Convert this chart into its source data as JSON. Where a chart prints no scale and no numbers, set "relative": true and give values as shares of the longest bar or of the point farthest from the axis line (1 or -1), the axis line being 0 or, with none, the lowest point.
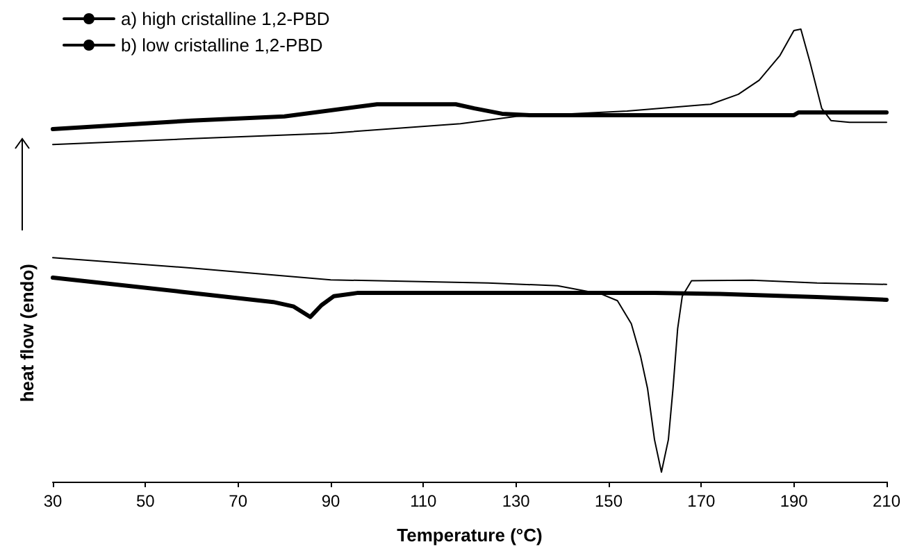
{
  "chart_data": {
    "type": "line",
    "relative": true,
    "xlabel": "Temperature (°C)",
    "ylabel": "heat flow (endo)",
    "xlim": [
      30,
      210
    ],
    "xticks": [
      30,
      50,
      70,
      90,
      110,
      130,
      150,
      170,
      190,
      210
    ],
    "grid": false,
    "legend": "top left",
    "marker": "none",
    "line_style": "solid",
    "series": [
      {
        "name": "a) high cristalline 1,2-PBD",
        "color": "#000000",
        "x": [
          30,
          60,
          90,
          118,
          130,
          154,
          172,
          178,
          182.5,
          187,
          190,
          191.5,
          193.5,
          196,
          198,
          202,
          210
        ],
        "values": [
          0.745,
          0.758,
          0.77,
          0.791,
          0.807,
          0.819,
          0.834,
          0.856,
          0.887,
          0.942,
          0.997,
          1.0,
          0.926,
          0.825,
          0.798,
          0.794,
          0.794
        ]
      },
      {
        "name": "b) low cristalline 1,2-PBD",
        "color": "#000000",
        "x": [
          30,
          60,
          80,
          100,
          117,
          121,
          127,
          133,
          190,
          191,
          210
        ],
        "values": [
          0.779,
          0.798,
          0.807,
          0.834,
          0.834,
          0.825,
          0.813,
          0.81,
          0.81,
          0.816,
          0.816
        ]
      },
      {
        "color": "#000000",
        "x": [
          30,
          60,
          90,
          124,
          139,
          148.3,
          151.9,
          154.9,
          156.9,
          158.4,
          159.9,
          161.4,
          162.9,
          163.9,
          164.9,
          165.9,
          167.9,
          181,
          195,
          210
        ],
        "values": [
          0.495,
          0.472,
          0.446,
          0.439,
          0.433,
          0.415,
          0.4,
          0.349,
          0.277,
          0.206,
          0.093,
          0.021,
          0.093,
          0.206,
          0.338,
          0.41,
          0.444,
          0.445,
          0.439,
          0.436
        ]
      },
      {
        "color": "#000000",
        "x": [
          30,
          57.5,
          77.6,
          82,
          85.6,
          88,
          90.7,
          95.7,
          160,
          174,
          195,
          210
        ],
        "values": [
          0.451,
          0.42,
          0.397,
          0.387,
          0.364,
          0.39,
          0.41,
          0.417,
          0.417,
          0.415,
          0.408,
          0.402
        ]
      }
    ]
  }
}
